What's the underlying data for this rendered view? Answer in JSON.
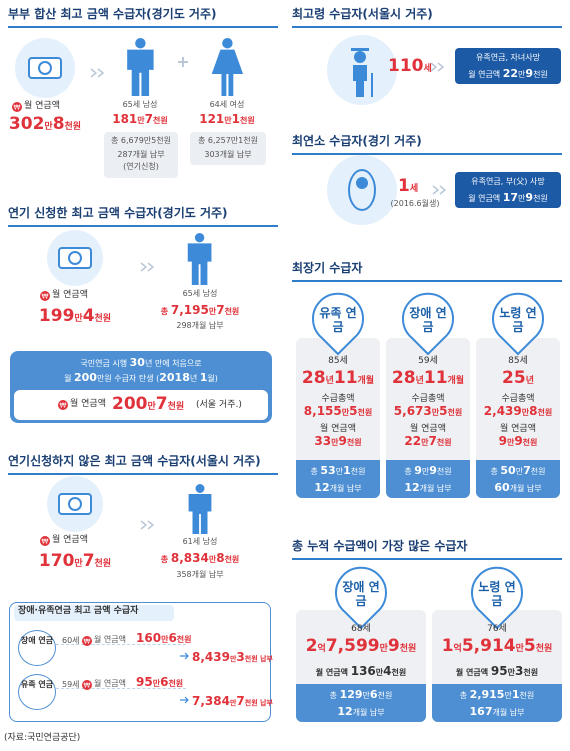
{
  "couple": {
    "title": "부부 합산 최고 금액 수급자(경기도 거주)",
    "monthly_label": "월 연금액",
    "monthly": "302만8천원",
    "man": {
      "who": "65세 남성",
      "monthly": "181만7천원",
      "total": "총 6,679만5천원",
      "months": "287개월 납부",
      "note": "(연기신청)"
    },
    "woman": {
      "who": "64세 여성",
      "monthly": "121만1천원",
      "total": "총 6,257만1천원",
      "months": "303개월 납부"
    }
  },
  "deferred": {
    "title": "연기 신청한 최고 금액 수급자(경기도 거주)",
    "monthly_label": "월 연금액",
    "monthly": "199만4천원",
    "who": "65세 남성",
    "total": "총 7,195만7천원",
    "months": "298개월 납부",
    "banner": {
      "line1": "국민연금 시행 30년 만에 처음으로",
      "line2": "월 200만원 수급자 탄생 (2018년 1월)",
      "label": "월 연금액",
      "value": "200만7천원",
      "note": "(서울 거주.)"
    }
  },
  "not_deferred": {
    "title": "연기신청하지 않은 최고 금액 수급자(서울시 거주)",
    "monthly_label": "월 연금액",
    "monthly": "170만7천원",
    "who": "61세 남성",
    "total": "총 8,834만8천원",
    "months": "358개월 납부"
  },
  "disability_survivor": {
    "title": "장애·유족연금 최고 금액 수급자",
    "rows": [
      {
        "type": "장애 연금",
        "age": "60세",
        "label": "월 연금액",
        "monthly": "160만6천원",
        "paid": "8,439만3천원 납부"
      },
      {
        "type": "유족 연금",
        "age": "59세",
        "label": "월 연금액",
        "monthly": "95만6천원",
        "paid": "7,384만7천원 납부"
      }
    ]
  },
  "oldest": {
    "title": "최고령 수급자(서울시 거주)",
    "age": "110세",
    "reason": "유족연금, 자녀사망",
    "monthly": "월 연금액 22만9천원"
  },
  "youngest": {
    "title": "최연소 수급자(경기 거주)",
    "age": "1세",
    "birth": "(2016.6월생)",
    "reason": "유족연금, 부(父) 사망",
    "monthly": "월 연금액 17만9천원"
  },
  "longest": {
    "title": "최장기 수급자",
    "cards": [
      {
        "type": "유족 연금",
        "age": "85세",
        "duration": "28년11개월",
        "total_label": "수급총액",
        "total": "8,155만5천원",
        "monthly_label": "월 연금액",
        "monthly": "33만9천원",
        "paid": "총 53만1천원",
        "months": "12개월 납부"
      },
      {
        "type": "장애 연금",
        "age": "59세",
        "duration": "28년11개월",
        "total_label": "수급총액",
        "total": "5,673만5천원",
        "monthly_label": "월 연금액",
        "monthly": "22만7천원",
        "paid": "총 9만9천원",
        "months": "12개월 납부"
      },
      {
        "type": "노령 연금",
        "age": "85세",
        "duration": "25년",
        "total_label": "수급총액",
        "total": "2,439만8천원",
        "monthly_label": "월 연금액",
        "monthly": "9만9천원",
        "paid": "총 50만7천원",
        "months": "60개월 납부"
      }
    ]
  },
  "cumulative": {
    "title": "총 누적 수급액이 가장 많은 수급자",
    "cards": [
      {
        "type": "장애 연금",
        "age": "68세",
        "total": "2억7,599만9천원",
        "monthly": "월 연금액 136만4천원",
        "paid": "총 129만6천원",
        "months": "12개월 납부"
      },
      {
        "type": "노령 연금",
        "age": "76세",
        "total": "1억5,914만5천원",
        "monthly": "월 연금액 95만3천원",
        "paid": "총 2,915만1천원",
        "months": "167개월 납부"
      }
    ]
  },
  "source": "(자료:국민연금공단)"
}
